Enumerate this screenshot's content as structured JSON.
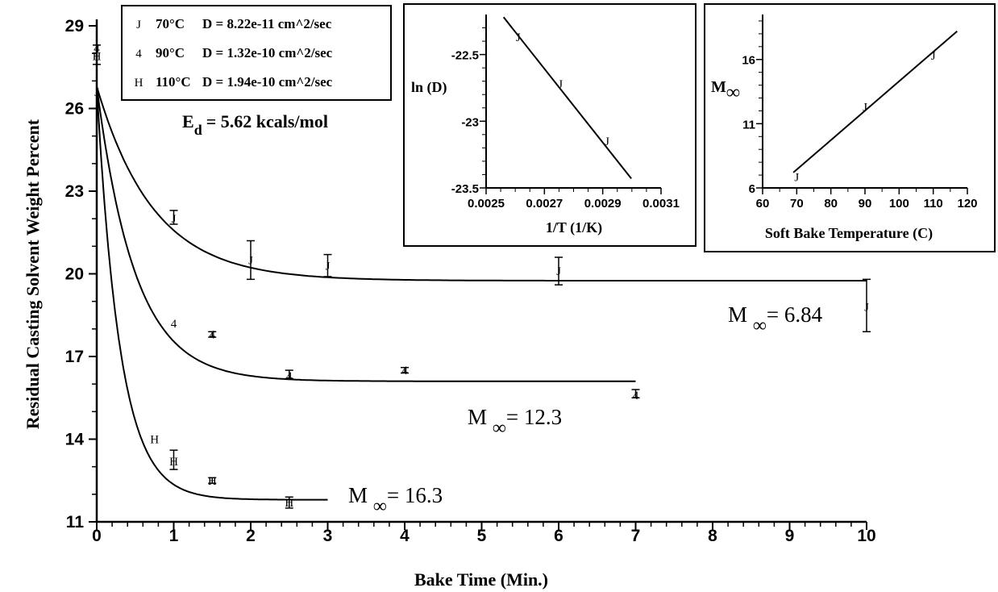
{
  "chart_data": [
    {
      "type": "scatter",
      "xlabel": "Bake Time (Min.)",
      "ylabel": "Residual Casting Solvent Weight Percent",
      "xlim": [
        0,
        10
      ],
      "ylim": [
        11,
        29
      ],
      "x_ticks": [
        "0",
        "1",
        "2",
        "3",
        "4",
        "5",
        "6",
        "7",
        "8",
        "9",
        "10"
      ],
      "y_ticks": [
        "11",
        "14",
        "17",
        "20",
        "23",
        "26",
        "29"
      ],
      "legend": {
        "placement": "top-left",
        "entries": [
          {
            "marker": "J",
            "temp": "70°C",
            "d_label": "D = 8.22e-11 cm^2/sec"
          },
          {
            "marker": "4",
            "temp": "90°C",
            "d_label": "D = 1.32e-10 cm^2/sec"
          },
          {
            "marker": "H",
            "temp": "110°C",
            "d_label": "D = 1.94e-10 cm^2/sec"
          }
        ]
      },
      "activation_energy": {
        "prefix": "E",
        "subscript": "d",
        "text": "= 5.62 kcals/mol"
      },
      "series": [
        {
          "marker": "J",
          "fit_end_x": 10,
          "fit_asymptote": 19.75,
          "fit_rate": 1.35,
          "points": [
            {
              "x": 0,
              "y": 26.6,
              "ylo": 26.6,
              "yhi": 26.6
            },
            {
              "x": 1,
              "y": 22.0,
              "ylo": 21.8,
              "yhi": 22.3
            },
            {
              "x": 2,
              "y": 20.5,
              "ylo": 19.8,
              "yhi": 21.2
            },
            {
              "x": 3,
              "y": 20.3,
              "ylo": 19.9,
              "yhi": 20.7
            },
            {
              "x": 6,
              "y": 20.1,
              "ylo": 19.6,
              "yhi": 20.6
            },
            {
              "x": 10,
              "y": 18.8,
              "ylo": 17.9,
              "yhi": 19.8
            }
          ],
          "annotation": {
            "symbol": "M",
            "subscript": "∞",
            "text": "= 6.84"
          }
        },
        {
          "marker": "4",
          "fit_end_x": 7,
          "fit_asymptote": 16.1,
          "fit_rate": 2.0,
          "points": [
            {
              "x": 0,
              "y": 28.2,
              "ylo": 28.2,
              "yhi": 28.2
            },
            {
              "x": 1,
              "y": 18.2,
              "ylo": 18.2,
              "yhi": 18.2
            },
            {
              "x": 1.5,
              "y": 17.8,
              "ylo": 17.7,
              "yhi": 17.9
            },
            {
              "x": 2.5,
              "y": 16.3,
              "ylo": 16.2,
              "yhi": 16.5
            },
            {
              "x": 4,
              "y": 16.5,
              "ylo": 16.4,
              "yhi": 16.6
            },
            {
              "x": 7,
              "y": 15.6,
              "ylo": 15.5,
              "yhi": 15.8
            }
          ],
          "annotation": {
            "symbol": "M",
            "subscript": "∞",
            "text": "= 12.3"
          }
        },
        {
          "marker": "H",
          "fit_end_x": 3,
          "fit_asymptote": 11.8,
          "fit_rate": 3.3,
          "points": [
            {
              "x": 0,
              "y": 27.9,
              "ylo": 27.6,
              "yhi": 28.3
            },
            {
              "x": 0.75,
              "y": 14.0,
              "ylo": 14.0,
              "yhi": 14.0
            },
            {
              "x": 1,
              "y": 13.2,
              "ylo": 12.9,
              "yhi": 13.6
            },
            {
              "x": 1.5,
              "y": 12.5,
              "ylo": 12.4,
              "yhi": 12.6
            },
            {
              "x": 2.5,
              "y": 11.7,
              "ylo": 11.5,
              "yhi": 11.9
            }
          ],
          "annotation": {
            "symbol": "M",
            "subscript": "∞",
            "text": "= 16.3"
          }
        }
      ]
    },
    {
      "type": "line",
      "ylabel": "ln (D)",
      "xlabel": "1/T (1/K)",
      "xlim": [
        0.0025,
        0.0031
      ],
      "ylim": [
        -23.5,
        -22.2
      ],
      "x_ticks": [
        "0.0025",
        "0.0027",
        "0.0029",
        "0.0031"
      ],
      "y_ticks": [
        "-22.5",
        "-23",
        "-23.5"
      ],
      "points": [
        {
          "x": 0.00261,
          "y": -22.37,
          "marker": "J"
        },
        {
          "x": 0.002755,
          "y": -22.72,
          "marker": "J"
        },
        {
          "x": 0.002915,
          "y": -23.15,
          "marker": "J"
        }
      ],
      "fit_line": [
        {
          "x": 0.00256,
          "y": -22.22
        },
        {
          "x": 0.002998,
          "y": -23.43
        }
      ]
    },
    {
      "type": "line",
      "ylabel": "M",
      "ylabel_subscript": "∞",
      "xlabel": "Soft Bake Temperature (C)",
      "xlim": [
        60,
        120
      ],
      "ylim": [
        6,
        19.5
      ],
      "x_ticks": [
        "60",
        "70",
        "80",
        "90",
        "100",
        "110",
        "120"
      ],
      "y_ticks": [
        "6",
        "11",
        "16"
      ],
      "points": [
        {
          "x": 70,
          "y": 6.84,
          "marker": "J"
        },
        {
          "x": 90,
          "y": 12.3,
          "marker": "J"
        },
        {
          "x": 110,
          "y": 16.3,
          "marker": "J"
        }
      ],
      "fit_line": [
        {
          "x": 69,
          "y": 7.2
        },
        {
          "x": 117,
          "y": 18.2
        }
      ]
    }
  ]
}
